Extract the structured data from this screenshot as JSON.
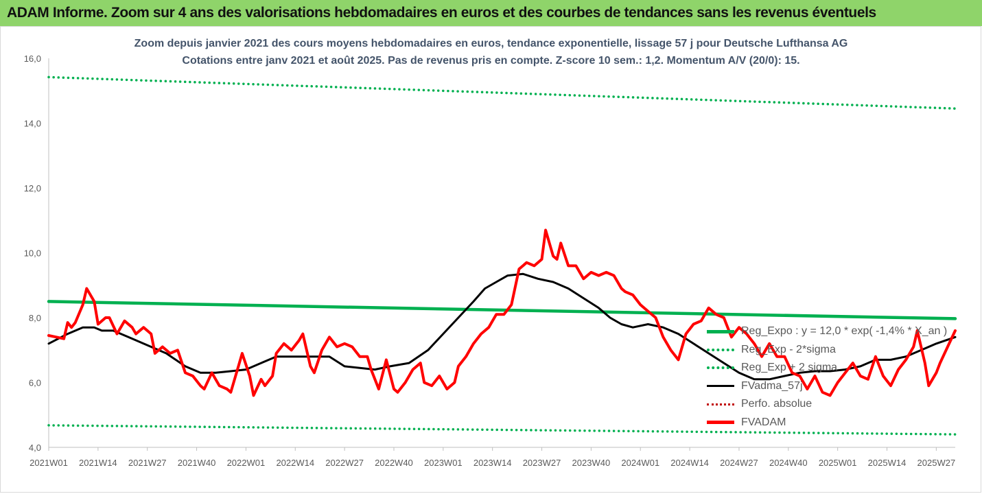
{
  "header": {
    "banner": "ADAM Informe. Zoom sur 4 ans des valorisations hebdomadaires en euros et des courbes de tendances sans les revenus éventuels"
  },
  "chart_data": {
    "type": "line",
    "title_line1": "Zoom depuis janvier 2021 des cours moyens hebdomadaires en euros, tendance exponentielle, lissage 57 j pour Deutsche Lufthansa AG",
    "title_line2": "Cotations entre janv 2021 et août 2025. Pas de revenus pris en compte. Z-score 10 sem.: 1,2. Momentum A/V (20/0): 15.",
    "ylim": [
      4.0,
      16.0
    ],
    "yticks": [
      "4,0",
      "6,0",
      "8,0",
      "10,0",
      "12,0",
      "14,0",
      "16,0"
    ],
    "x_categories": [
      "2021W01",
      "2021W14",
      "2021W27",
      "2021W40",
      "2022W01",
      "2022W14",
      "2022W27",
      "2022W40",
      "2023W01",
      "2023W14",
      "2023W27",
      "2023W40",
      "2024W01",
      "2024W14",
      "2024W27",
      "2024W40",
      "2025W01",
      "2025W14",
      "2025W27"
    ],
    "x_range_weeks": [
      0,
      239
    ],
    "grid": false,
    "legend_position": "bottom-right",
    "colors": {
      "reg_expo": "#00b050",
      "sigma": "#00b050",
      "fvadma": "#000000",
      "perfo": "#c00000",
      "fvadam": "#ff0000"
    },
    "series": [
      {
        "name": "Reg_Expo : y = 12,0 * exp( -1,4% *  X_an )",
        "style": "solid",
        "values": [
          [
            0,
            8.5
          ],
          [
            239,
            7.97
          ]
        ]
      },
      {
        "name": "Reg_Exp - 2*sigma",
        "style": "dotted",
        "values": [
          [
            0,
            4.68
          ],
          [
            239,
            4.4
          ]
        ]
      },
      {
        "name": "Reg_Exp + 2 sigma",
        "style": "dotted",
        "values": [
          [
            0,
            15.42
          ],
          [
            239,
            14.45
          ]
        ]
      },
      {
        "name": "FVadma_57j",
        "style": "solid",
        "values": [
          [
            0,
            7.2
          ],
          [
            5,
            7.5
          ],
          [
            9,
            7.7
          ],
          [
            12,
            7.7
          ],
          [
            14,
            7.6
          ],
          [
            17,
            7.6
          ],
          [
            21,
            7.4
          ],
          [
            27,
            7.1
          ],
          [
            31,
            6.9
          ],
          [
            36,
            6.5
          ],
          [
            40,
            6.3
          ],
          [
            44,
            6.3
          ],
          [
            48,
            6.35
          ],
          [
            52,
            6.4
          ],
          [
            56,
            6.6
          ],
          [
            60,
            6.8
          ],
          [
            65,
            6.8
          ],
          [
            70,
            6.8
          ],
          [
            74,
            6.8
          ],
          [
            78,
            6.5
          ],
          [
            82,
            6.45
          ],
          [
            86,
            6.4
          ],
          [
            90,
            6.5
          ],
          [
            95,
            6.6
          ],
          [
            100,
            7.0
          ],
          [
            104,
            7.5
          ],
          [
            108,
            8.0
          ],
          [
            112,
            8.5
          ],
          [
            115,
            8.9
          ],
          [
            118,
            9.1
          ],
          [
            121,
            9.3
          ],
          [
            125,
            9.35
          ],
          [
            129,
            9.2
          ],
          [
            133,
            9.1
          ],
          [
            137,
            8.9
          ],
          [
            141,
            8.6
          ],
          [
            145,
            8.3
          ],
          [
            148,
            8.0
          ],
          [
            151,
            7.8
          ],
          [
            154,
            7.7
          ],
          [
            158,
            7.8
          ],
          [
            162,
            7.7
          ],
          [
            166,
            7.5
          ],
          [
            170,
            7.2
          ],
          [
            174,
            6.9
          ],
          [
            178,
            6.6
          ],
          [
            182,
            6.3
          ],
          [
            186,
            6.1
          ],
          [
            190,
            6.1
          ],
          [
            194,
            6.2
          ],
          [
            198,
            6.3
          ],
          [
            202,
            6.35
          ],
          [
            206,
            6.35
          ],
          [
            210,
            6.4
          ],
          [
            214,
            6.5
          ],
          [
            218,
            6.7
          ],
          [
            222,
            6.7
          ],
          [
            226,
            6.8
          ],
          [
            230,
            7.0
          ],
          [
            234,
            7.2
          ],
          [
            239,
            7.4
          ]
        ]
      },
      {
        "name": "Perfo. absolue",
        "style": "dotted",
        "values": []
      },
      {
        "name": "FVADAM",
        "style": "solid",
        "values": [
          [
            0,
            7.45
          ],
          [
            2,
            7.4
          ],
          [
            4,
            7.35
          ],
          [
            5,
            7.85
          ],
          [
            6,
            7.7
          ],
          [
            7,
            7.85
          ],
          [
            9,
            8.4
          ],
          [
            10,
            8.9
          ],
          [
            12,
            8.5
          ],
          [
            13,
            7.8
          ],
          [
            15,
            8.0
          ],
          [
            16,
            8.0
          ],
          [
            18,
            7.5
          ],
          [
            20,
            7.9
          ],
          [
            22,
            7.7
          ],
          [
            23,
            7.5
          ],
          [
            25,
            7.7
          ],
          [
            27,
            7.5
          ],
          [
            28,
            6.9
          ],
          [
            30,
            7.1
          ],
          [
            32,
            6.9
          ],
          [
            34,
            7.0
          ],
          [
            36,
            6.3
          ],
          [
            38,
            6.2
          ],
          [
            40,
            5.9
          ],
          [
            41,
            5.8
          ],
          [
            43,
            6.3
          ],
          [
            45,
            5.9
          ],
          [
            47,
            5.8
          ],
          [
            48,
            5.7
          ],
          [
            50,
            6.5
          ],
          [
            51,
            6.9
          ],
          [
            53,
            6.2
          ],
          [
            54,
            5.6
          ],
          [
            56,
            6.1
          ],
          [
            57,
            5.9
          ],
          [
            59,
            6.2
          ],
          [
            60,
            6.9
          ],
          [
            62,
            7.2
          ],
          [
            64,
            7.0
          ],
          [
            66,
            7.3
          ],
          [
            67,
            7.5
          ],
          [
            69,
            6.5
          ],
          [
            70,
            6.3
          ],
          [
            72,
            7.0
          ],
          [
            74,
            7.4
          ],
          [
            76,
            7.1
          ],
          [
            78,
            7.2
          ],
          [
            80,
            7.1
          ],
          [
            82,
            6.8
          ],
          [
            84,
            6.8
          ],
          [
            85,
            6.4
          ],
          [
            87,
            5.8
          ],
          [
            89,
            6.7
          ],
          [
            91,
            5.8
          ],
          [
            92,
            5.7
          ],
          [
            94,
            6.0
          ],
          [
            96,
            6.4
          ],
          [
            98,
            6.6
          ],
          [
            99,
            6.0
          ],
          [
            101,
            5.9
          ],
          [
            103,
            6.2
          ],
          [
            105,
            5.8
          ],
          [
            107,
            6.0
          ],
          [
            108,
            6.5
          ],
          [
            110,
            6.8
          ],
          [
            112,
            7.2
          ],
          [
            114,
            7.5
          ],
          [
            116,
            7.7
          ],
          [
            118,
            8.1
          ],
          [
            120,
            8.1
          ],
          [
            122,
            8.4
          ],
          [
            124,
            9.5
          ],
          [
            126,
            9.7
          ],
          [
            128,
            9.6
          ],
          [
            130,
            9.8
          ],
          [
            131,
            10.7
          ],
          [
            133,
            9.9
          ],
          [
            134,
            9.8
          ],
          [
            135,
            10.3
          ],
          [
            137,
            9.6
          ],
          [
            139,
            9.6
          ],
          [
            141,
            9.2
          ],
          [
            143,
            9.4
          ],
          [
            145,
            9.3
          ],
          [
            147,
            9.4
          ],
          [
            149,
            9.3
          ],
          [
            151,
            8.9
          ],
          [
            152,
            8.8
          ],
          [
            154,
            8.7
          ],
          [
            156,
            8.4
          ],
          [
            158,
            8.2
          ],
          [
            160,
            8.0
          ],
          [
            162,
            7.4
          ],
          [
            164,
            7.0
          ],
          [
            166,
            6.7
          ],
          [
            168,
            7.5
          ],
          [
            170,
            7.8
          ],
          [
            172,
            7.9
          ],
          [
            174,
            8.3
          ],
          [
            176,
            8.1
          ],
          [
            178,
            8.0
          ],
          [
            180,
            7.4
          ],
          [
            182,
            7.7
          ],
          [
            184,
            7.5
          ],
          [
            186,
            7.2
          ],
          [
            188,
            6.8
          ],
          [
            190,
            7.2
          ],
          [
            192,
            6.8
          ],
          [
            194,
            6.8
          ],
          [
            196,
            6.3
          ],
          [
            198,
            6.2
          ],
          [
            200,
            5.8
          ],
          [
            202,
            6.2
          ],
          [
            204,
            5.7
          ],
          [
            206,
            5.6
          ],
          [
            208,
            6.0
          ],
          [
            210,
            6.3
          ],
          [
            212,
            6.6
          ],
          [
            214,
            6.2
          ],
          [
            216,
            6.1
          ],
          [
            218,
            6.8
          ],
          [
            220,
            6.2
          ],
          [
            222,
            5.9
          ],
          [
            224,
            6.4
          ],
          [
            226,
            6.7
          ],
          [
            228,
            7.1
          ],
          [
            229,
            7.6
          ],
          [
            231,
            6.6
          ],
          [
            232,
            5.9
          ],
          [
            234,
            6.3
          ],
          [
            235,
            6.6
          ],
          [
            237,
            7.1
          ],
          [
            239,
            7.6
          ]
        ]
      }
    ]
  }
}
